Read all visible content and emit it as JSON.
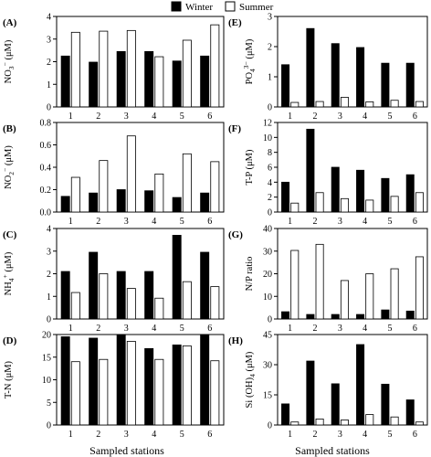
{
  "legend": [
    {
      "label": "Winter",
      "color": "#000000"
    },
    {
      "label": "Summer",
      "color": "#ffffff"
    }
  ],
  "xlabels": [
    "Sampled stations",
    "Sampled stations"
  ],
  "chart_data": [
    {
      "type": "bar",
      "panel": "(A)",
      "ylabel": "NO",
      "ylabel_sub": "3",
      "ylabel_sup": "−",
      "ylabel_unit": " (μM)",
      "categories": [
        "1",
        "2",
        "3",
        "4",
        "5",
        "6"
      ],
      "ylim": [
        0,
        4
      ],
      "yticks": [
        "0",
        "1",
        "2",
        "3",
        "4"
      ],
      "series": [
        {
          "name": "Winter",
          "values": [
            2.25,
            1.98,
            2.45,
            2.45,
            2.03,
            2.25
          ]
        },
        {
          "name": "Summer",
          "values": [
            3.3,
            3.35,
            3.38,
            2.22,
            2.95,
            3.63
          ]
        }
      ]
    },
    {
      "type": "bar",
      "panel": "(B)",
      "ylabel": "NO",
      "ylabel_sub": "2",
      "ylabel_sup": "−",
      "ylabel_unit": " (μM)",
      "categories": [
        "1",
        "2",
        "3",
        "4",
        "5",
        "6"
      ],
      "ylim": [
        0,
        0.8
      ],
      "yticks": [
        "0.0",
        "0.2",
        "0.4",
        "0.6",
        "0.8"
      ],
      "series": [
        {
          "name": "Winter",
          "values": [
            0.14,
            0.17,
            0.2,
            0.19,
            0.13,
            0.17
          ]
        },
        {
          "name": "Summer",
          "values": [
            0.31,
            0.46,
            0.68,
            0.34,
            0.52,
            0.45
          ]
        }
      ]
    },
    {
      "type": "bar",
      "panel": "(C)",
      "ylabel": "NH",
      "ylabel_sub": "4",
      "ylabel_sup": "+",
      "ylabel_unit": " (μM)",
      "categories": [
        "1",
        "2",
        "3",
        "4",
        "5",
        "6"
      ],
      "ylim": [
        0,
        4
      ],
      "yticks": [
        "0",
        "1",
        "2",
        "3",
        "4"
      ],
      "series": [
        {
          "name": "Winter",
          "values": [
            2.1,
            2.95,
            2.1,
            2.1,
            3.7,
            2.95
          ]
        },
        {
          "name": "Summer",
          "values": [
            1.17,
            2.0,
            1.35,
            0.92,
            1.65,
            1.43
          ]
        }
      ]
    },
    {
      "type": "bar",
      "panel": "(D)",
      "ylabel": "T-N",
      "ylabel_sub": "",
      "ylabel_sup": "",
      "ylabel_unit": " (μM)",
      "categories": [
        "1",
        "2",
        "3",
        "4",
        "5",
        "6"
      ],
      "ylim": [
        0,
        20
      ],
      "yticks": [
        "0",
        "5",
        "10",
        "15",
        "20"
      ],
      "series": [
        {
          "name": "Winter",
          "values": [
            19.5,
            19.2,
            20.0,
            16.9,
            17.7,
            20.0
          ]
        },
        {
          "name": "Summer",
          "values": [
            14.0,
            14.5,
            18.5,
            14.5,
            17.5,
            14.2
          ]
        }
      ]
    },
    {
      "type": "bar",
      "panel": "(E)",
      "ylabel": "PO",
      "ylabel_sub": "4",
      "ylabel_sup": "3−",
      "ylabel_unit": " (μM)",
      "categories": [
        "1",
        "2",
        "3",
        "4",
        "5",
        "6"
      ],
      "ylim": [
        0,
        3
      ],
      "yticks": [
        "0",
        "1",
        "2",
        "3"
      ],
      "series": [
        {
          "name": "Winter",
          "values": [
            1.4,
            2.6,
            2.1,
            1.97,
            1.45,
            1.45
          ]
        },
        {
          "name": "Summer",
          "values": [
            0.15,
            0.18,
            0.32,
            0.17,
            0.22,
            0.18
          ]
        }
      ]
    },
    {
      "type": "bar",
      "panel": "(F)",
      "ylabel": "T-P",
      "ylabel_sub": "",
      "ylabel_sup": "",
      "ylabel_unit": " (μM)",
      "categories": [
        "1",
        "2",
        "3",
        "4",
        "5",
        "6"
      ],
      "ylim": [
        0,
        12
      ],
      "yticks": [
        "0",
        "2",
        "4",
        "6",
        "8",
        "10",
        "12"
      ],
      "series": [
        {
          "name": "Winter",
          "values": [
            4.0,
            11.1,
            6.0,
            5.6,
            4.5,
            5.0
          ]
        },
        {
          "name": "Summer",
          "values": [
            1.2,
            2.6,
            1.8,
            1.6,
            2.1,
            2.6
          ]
        }
      ]
    },
    {
      "type": "bar",
      "panel": "(G)",
      "ylabel": "N/P ratio",
      "ylabel_sub": "",
      "ylabel_sup": "",
      "ylabel_unit": "",
      "categories": [
        "1",
        "2",
        "3",
        "4",
        "5",
        "6"
      ],
      "ylim": [
        0,
        40
      ],
      "yticks": [
        "0",
        "10",
        "20",
        "30",
        "40"
      ],
      "series": [
        {
          "name": "Winter",
          "values": [
            3.2,
            2.0,
            2.0,
            2.0,
            4.0,
            3.5
          ]
        },
        {
          "name": "Summer",
          "values": [
            30.3,
            33.0,
            17.0,
            20.0,
            22.2,
            27.5
          ]
        }
      ]
    },
    {
      "type": "bar",
      "panel": "(H)",
      "ylabel": "Si (OH)",
      "ylabel_sub": "4",
      "ylabel_sup": "",
      "ylabel_unit": " (μM)",
      "categories": [
        "1",
        "2",
        "3",
        "4",
        "5",
        "6"
      ],
      "ylim": [
        0,
        45
      ],
      "yticks": [
        "0",
        "15",
        "30",
        "45"
      ],
      "series": [
        {
          "name": "Winter",
          "values": [
            10.5,
            31.8,
            20.5,
            40.0,
            20.3,
            12.5
          ]
        },
        {
          "name": "Summer",
          "values": [
            1.5,
            3.0,
            2.5,
            5.2,
            4.0,
            1.5
          ]
        }
      ]
    }
  ]
}
